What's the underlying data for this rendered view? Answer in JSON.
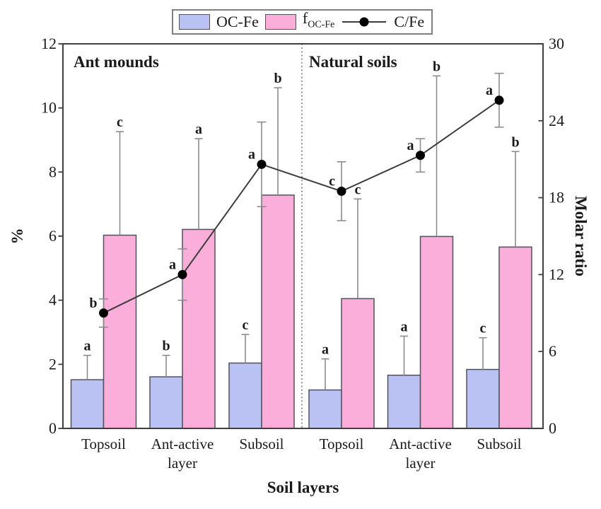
{
  "legend": {
    "items": [
      {
        "label": "OC-Fe",
        "swatch_color": "#b9c2f2"
      },
      {
        "label_prefix": "f",
        "label_sub": "OC-Fe",
        "swatch_color": "#fbaed9"
      },
      {
        "label": "C/Fe",
        "marker": "line-dot"
      }
    ]
  },
  "chart_data": {
    "type": "grouped-bar-with-line",
    "group_labels": [
      "Ant mounds",
      "Natural soils"
    ],
    "x_axis": {
      "title": "Soil layers",
      "tick_label_lines": [
        [
          "Topsoil"
        ],
        [
          "Ant-active",
          "layer"
        ],
        [
          "Subsoil"
        ],
        [
          "Topsoil"
        ],
        [
          "Ant-active",
          "layer"
        ],
        [
          "Subsoil"
        ]
      ]
    },
    "left_axis": {
      "title": "%",
      "min": 0,
      "max": 12,
      "ticks": [
        0,
        2,
        4,
        6,
        8,
        10,
        12
      ]
    },
    "right_axis": {
      "title": "Molar ratio",
      "min": 0,
      "max": 30,
      "ticks": [
        0,
        6,
        12,
        18,
        24,
        30
      ]
    },
    "series": [
      {
        "name": "OC-Fe",
        "type": "bar",
        "axis": "left",
        "color": "#b9c2f2",
        "values": [
          1.52,
          1.61,
          2.04,
          1.2,
          1.66,
          1.84
        ],
        "errors_plus": [
          0.76,
          0.67,
          0.89,
          0.97,
          1.22,
          0.99
        ],
        "letters": [
          "a",
          "b",
          "c",
          "a",
          "a",
          "c"
        ]
      },
      {
        "name": "f_OC-Fe",
        "name_prefix": "f",
        "name_sub": "OC-Fe",
        "type": "bar",
        "axis": "left",
        "color": "#fbaed9",
        "values": [
          6.03,
          6.21,
          7.28,
          4.05,
          5.99,
          5.66
        ],
        "errors_plus": [
          3.23,
          2.83,
          3.35,
          3.11,
          5.01,
          2.98
        ],
        "letters": [
          "c",
          "a",
          "b",
          "c",
          "b",
          "b"
        ]
      },
      {
        "name": "C/Fe",
        "type": "line",
        "axis": "right",
        "color": "#3d3d3d",
        "marker_color": "#000000",
        "values": [
          9.0,
          12.0,
          20.6,
          18.5,
          21.3,
          25.6
        ],
        "errors": [
          1.1,
          2.0,
          3.3,
          2.3,
          1.3,
          2.1
        ],
        "letters": [
          "b",
          "a",
          "a",
          "c",
          "a",
          "a"
        ]
      }
    ],
    "styles": {
      "bar_border": "#52525e",
      "error_bar": "#8c8c8c",
      "plot_border": "#3f3f3f",
      "divider": "#707070",
      "text": "#1a1a1a"
    }
  }
}
